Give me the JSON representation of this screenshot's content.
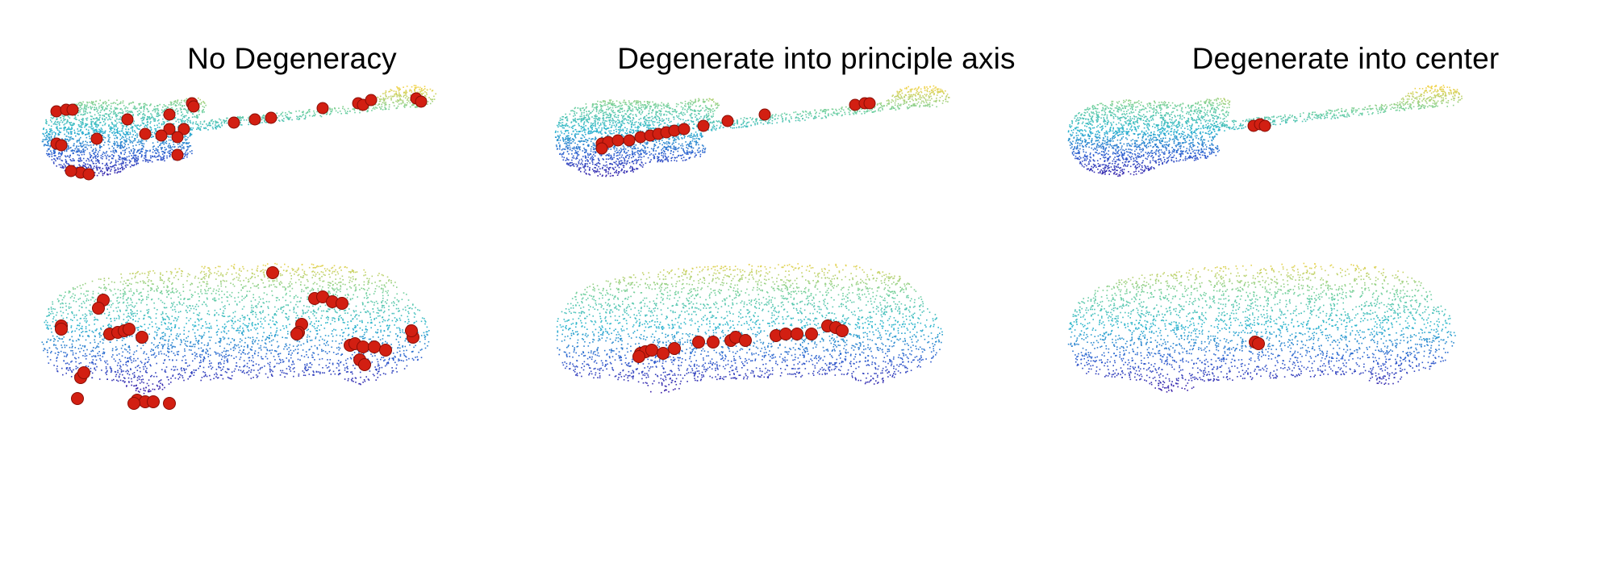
{
  "columns": [
    {
      "title": "No Degeneracy"
    },
    {
      "title": "Degenerate into principle axis"
    },
    {
      "title": "Degenerate into center"
    }
  ],
  "rows": [
    {
      "object": "guitar"
    },
    {
      "object": "car"
    }
  ],
  "colors": {
    "keypoint": "#d21f12",
    "colormap": [
      "#3a1fa8",
      "#2d5fd0",
      "#2bb5cf",
      "#6fd0a0",
      "#f0d34a"
    ],
    "background": "#ffffff"
  }
}
